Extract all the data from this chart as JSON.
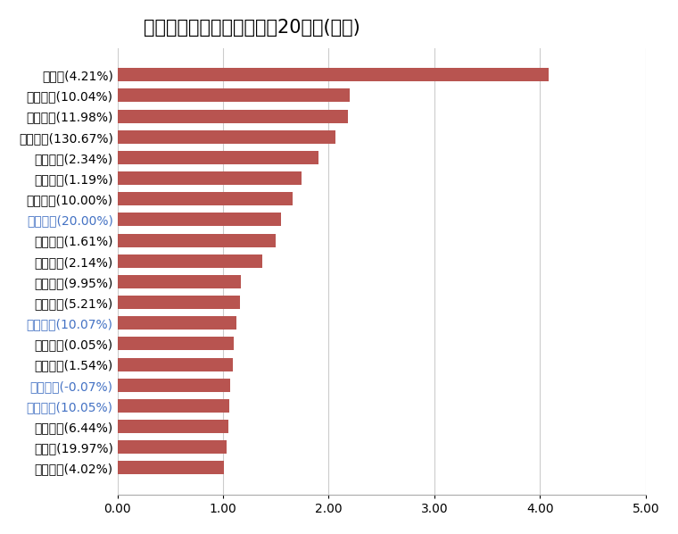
{
  "title": "今日主力资金净流入金额前20个股(亿元)",
  "categories": [
    "赛力斯(4.21%)",
    "大众交通(10.04%)",
    "正丹股份(11.98%)",
    "科力装备(130.67%)",
    "金山办公(2.34%)",
    "北汽蓝谷(1.19%)",
    "东方精工(10.00%)",
    "国民技术(20.00%)",
    "天孚通信(1.61%)",
    "长安汽车(2.14%)",
    "锦龙股份(9.95%)",
    "沃尔核材(5.21%)",
    "常山北明(10.07%)",
    "美的集团(0.05%)",
    "东山精密(1.54%)",
    "中国平安(-0.07%)",
    "金龙汽车(10.05%)",
    "胜宏科技(6.44%)",
    "飞力达(19.97%)",
    "软通动力(4.02%)"
  ],
  "values": [
    4.08,
    2.2,
    2.18,
    2.06,
    1.9,
    1.74,
    1.66,
    1.55,
    1.5,
    1.37,
    1.17,
    1.16,
    1.13,
    1.1,
    1.09,
    1.07,
    1.06,
    1.05,
    1.03,
    1.01
  ],
  "bar_color": "#b85450",
  "label_colors": {
    "赛力斯(4.21%)": "#000000",
    "大众交通(10.04%)": "#000000",
    "正丹股份(11.98%)": "#000000",
    "科力装备(130.67%)": "#000000",
    "金山办公(2.34%)": "#000000",
    "北汽蓝谷(1.19%)": "#000000",
    "东方精工(10.00%)": "#000000",
    "国民技术(20.00%)": "#4472c4",
    "天孚通信(1.61%)": "#000000",
    "长安汽车(2.14%)": "#000000",
    "锦龙股份(9.95%)": "#000000",
    "沃尔核材(5.21%)": "#000000",
    "常山北明(10.07%)": "#4472c4",
    "美的集团(0.05%)": "#000000",
    "东山精密(1.54%)": "#000000",
    "中国平安(-0.07%)": "#4472c4",
    "金龙汽车(10.05%)": "#4472c4",
    "胜宏科技(6.44%)": "#000000",
    "飞力达(19.97%)": "#000000",
    "软通动力(4.02%)": "#000000"
  },
  "xlim": [
    0,
    5.0
  ],
  "xticks": [
    0.0,
    1.0,
    2.0,
    3.0,
    4.0,
    5.0
  ],
  "xtick_labels": [
    "0.00",
    "1.00",
    "2.00",
    "3.00",
    "4.00",
    "5.00"
  ],
  "background_color": "#ffffff",
  "title_fontsize": 15,
  "tick_fontsize": 10,
  "label_fontsize": 10
}
